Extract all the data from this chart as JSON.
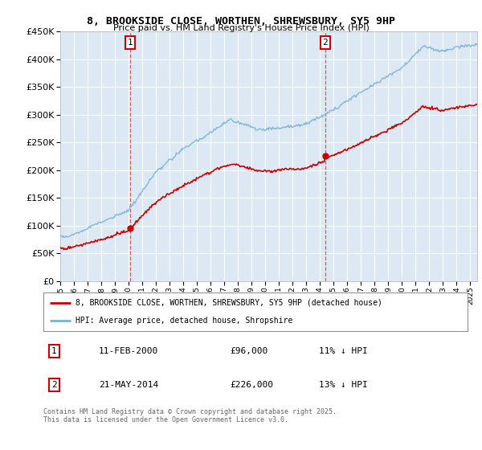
{
  "title": "8, BROOKSIDE CLOSE, WORTHEN, SHREWSBURY, SY5 9HP",
  "subtitle": "Price paid vs. HM Land Registry's House Price Index (HPI)",
  "legend_line1": "8, BROOKSIDE CLOSE, WORTHEN, SHREWSBURY, SY5 9HP (detached house)",
  "legend_line2": "HPI: Average price, detached house, Shropshire",
  "annotation1_label": "1",
  "annotation1_date": "11-FEB-2000",
  "annotation1_price": "£96,000",
  "annotation1_hpi": "11% ↓ HPI",
  "annotation2_label": "2",
  "annotation2_date": "21-MAY-2014",
  "annotation2_price": "£226,000",
  "annotation2_hpi": "13% ↓ HPI",
  "footer": "Contains HM Land Registry data © Crown copyright and database right 2025.\nThis data is licensed under the Open Government Licence v3.0.",
  "sale1_year": 2000.11,
  "sale1_price": 96000,
  "sale2_year": 2014.38,
  "sale2_price": 226000,
  "hpi_color": "#7ab3d4",
  "price_color": "#cc0000",
  "vline_color": "#cc0000",
  "plot_bg": "#dce8f3",
  "ylim": [
    0,
    450000
  ],
  "xlim_start": 1995.0,
  "xlim_end": 2025.5,
  "hpi_seed": 10,
  "price_seed": 77
}
